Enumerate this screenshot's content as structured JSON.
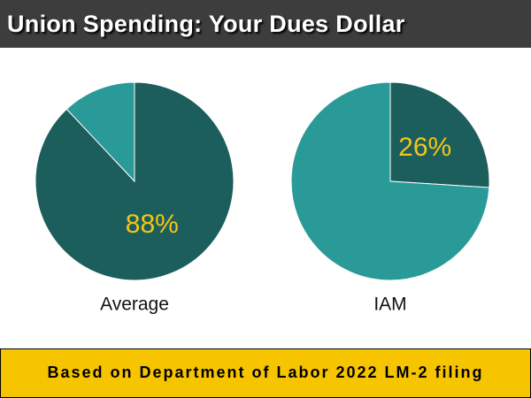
{
  "header": {
    "title": "Union Spending: Your Dues Dollar"
  },
  "chart_data": [
    {
      "type": "pie",
      "label": "Average",
      "values": [
        88,
        12
      ],
      "value_labels": [
        "88%",
        null
      ],
      "colors": [
        "#1b5e5b",
        "#2a9a98"
      ]
    },
    {
      "type": "pie",
      "label": "IAM",
      "values": [
        26,
        74
      ],
      "value_labels": [
        "26%",
        null
      ],
      "colors": [
        "#1b5e5b",
        "#2a9a98"
      ]
    }
  ],
  "footer": {
    "text": "Based on Department of Labor 2022 LM-2 filing"
  }
}
